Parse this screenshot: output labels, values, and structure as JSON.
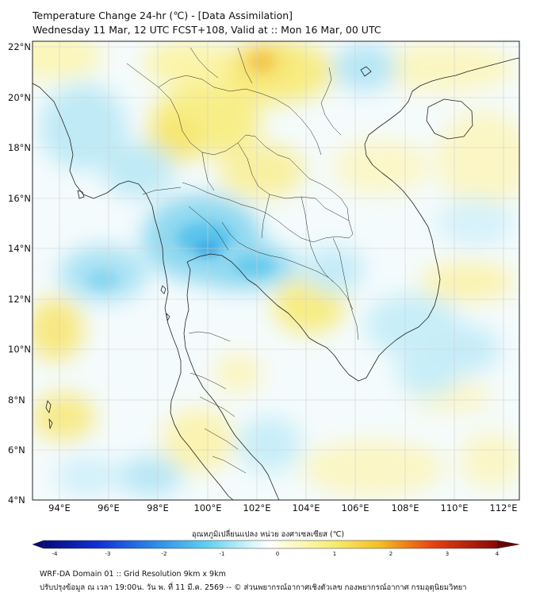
{
  "title_line1": "Temperature Change 24-hr (℃) - [Data Assimilation]",
  "title_line2": "Wednesday 11 Mar, 12 UTC FCST+108, Valid at :: Mon 16 Mar, 00 UTC",
  "lat_labels": [
    "22°N",
    "20°N",
    "18°N",
    "16°N",
    "14°N",
    "12°N",
    "10°N",
    "8°N",
    "6°N",
    "4°N"
  ],
  "lon_labels": [
    "94°E",
    "96°E",
    "98°E",
    "100°E",
    "102°E",
    "104°E",
    "106°E",
    "108°E",
    "110°E",
    "112°E"
  ],
  "colorbar": {
    "label": "อุณหภูมิเปลี่ยนแปลง หน่วย องศาเซลเซียส (℃)",
    "ticks": [
      "-4",
      "-3",
      "-2",
      "-1",
      "0",
      "1",
      "2",
      "3",
      "4"
    ],
    "min": -4,
    "max": 4,
    "colors": [
      "#0a0a7a",
      "#1030d8",
      "#2ea0ee",
      "#8ee0f0",
      "#ffffff",
      "#f8f07a",
      "#f4c020",
      "#e84010",
      "#8a0808"
    ]
  },
  "footer_line1": "WRF-DA Domain 01 :: Grid Resolution 9km x 9km",
  "footer_line2": "ปรับปรุงข้อมูล ณ เวลา 19:00น. วัน พ. ที่ 11 มี.ค. 2569 -- © ส่วนพยากรณ์อากาศเชิงตัวเลข กองพยากรณ์อากาศ กรมอุตุนิยมวิทยา",
  "map_extent": {
    "lon": [
      93,
      112.5
    ],
    "lat": [
      4,
      22.2
    ]
  }
}
